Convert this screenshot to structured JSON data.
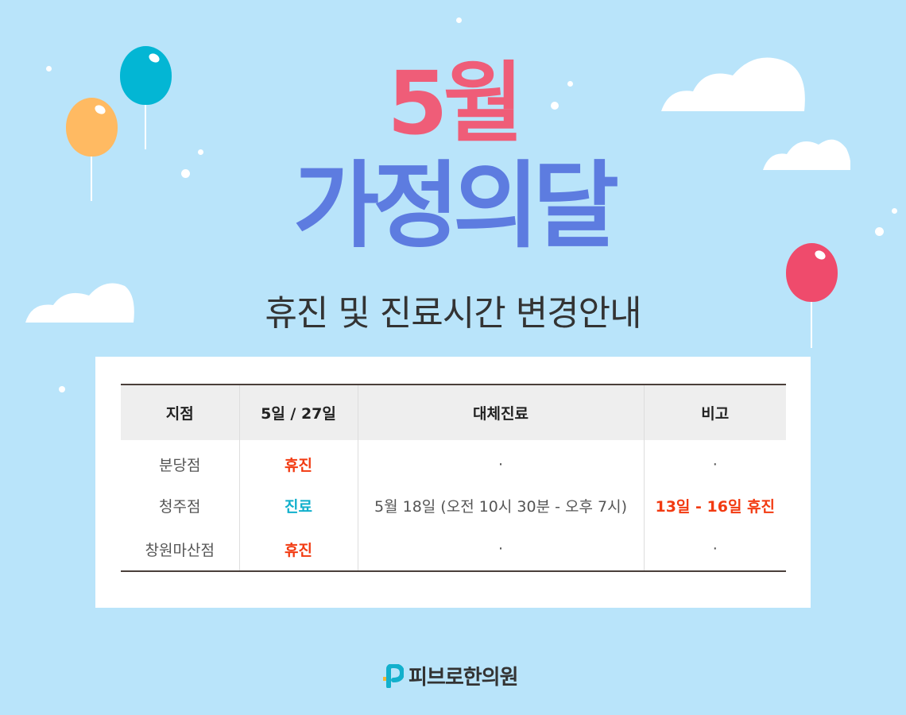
{
  "banner": {
    "month": "5월",
    "title": "가정의달",
    "subtitle": "휴진 및 진료시간 변경안내"
  },
  "table": {
    "headers": [
      "지점",
      "5일 / 27일",
      "대체진료",
      "비고"
    ],
    "rows": [
      {
        "branch": "분당점",
        "status": "휴진",
        "alt": "·",
        "note": "·"
      },
      {
        "branch": "청주점",
        "status": "진료",
        "alt": "5월 18일 (오전 10시 30분 - 오후 7시)",
        "note": "13일 - 16일 휴진"
      },
      {
        "branch": "창원마산점",
        "status": "휴진",
        "alt": "·",
        "note": "·"
      }
    ]
  },
  "footer": {
    "logo_text": "피브로한의원"
  },
  "colors": {
    "background": "#b9e4fa",
    "month": "#ef5d78",
    "title": "#5d7ce0",
    "closed": "#f23a11",
    "open": "#12b0cc"
  }
}
